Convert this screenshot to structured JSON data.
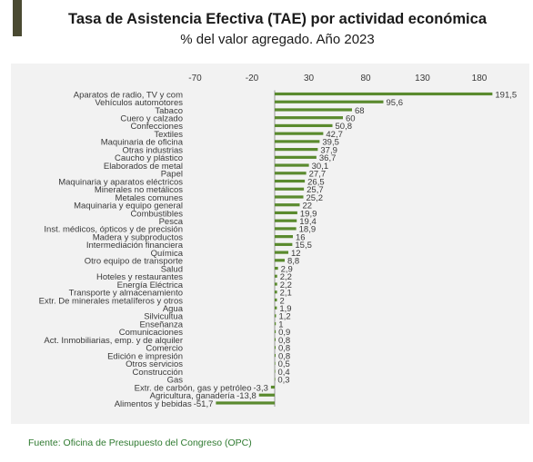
{
  "header": {
    "title": "Tasa de Asistencia Efectiva (TAE) por actividad económica",
    "subtitle": "% del valor agregado. Año 2023"
  },
  "footer": {
    "source": "Fuente: Oficina de Presupuesto del Congreso (OPC)"
  },
  "colors": {
    "bar": "#5a8a2e",
    "axis": "#9a9a9a",
    "text": "#3a3a3a",
    "panel": "#f2f2f2",
    "source": "#2f7a30",
    "accent": "#4a4a32"
  },
  "chart_data": {
    "type": "bar",
    "orientation": "horizontal",
    "title": "Tasa de Asistencia Efectiva (TAE) por actividad económica",
    "subtitle": "% del valor agregado. Año 2023",
    "xlim": [
      -70,
      200
    ],
    "xticks": [
      -70,
      -20,
      30,
      80,
      130,
      180
    ],
    "grid": false,
    "categories": [
      "Aparatos de radio, TV y com",
      "Vehículos automotores",
      "Tabaco",
      "Cuero y calzado",
      "Confecciones",
      "Textiles",
      "Maquinaria de oficina",
      "Otras industrias",
      "Caucho y plástico",
      "Elaborados de metal",
      "Papel",
      "Maquinaria y aparatos eléctricos",
      "Minerales no metálicos",
      "Metales comunes",
      "Maquinaria y equipo general",
      "Combustibles",
      "Pesca",
      "Inst. médicos, ópticos y de precisión",
      "Madera y subproductos",
      "Intermediación financiera",
      "Química",
      "Otro equipo de transporte",
      "Salud",
      "Hoteles y restaurantes",
      "Energía Eléctrica",
      "Transporte y almacenamiento",
      "Extr. De minerales metalíferos y otros",
      "Agua",
      "Silvicultua",
      "Enseñanza",
      "Comunicaciones",
      "Act. Inmobiliarias, emp. y de alquiler",
      "Comercio",
      "Edición e impresión",
      "Otros servicios",
      "Construcción",
      "Gas",
      "Extr. de carbón, gas y petróleo",
      "Agricultura, ganadería",
      "Alimentos y bebidas"
    ],
    "values": [
      191.5,
      95.6,
      68,
      60,
      50.8,
      42.7,
      39.5,
      37.9,
      36.7,
      30.1,
      27.7,
      26.5,
      25.7,
      25.2,
      22,
      19.9,
      19.4,
      18.9,
      16,
      15.5,
      12,
      8.8,
      2.9,
      2.2,
      2.2,
      2.1,
      2,
      1.9,
      1.2,
      1,
      0.9,
      0.8,
      0.8,
      0.8,
      0.5,
      0.4,
      0.3,
      -3.3,
      -13.8,
      -51.7
    ],
    "value_labels": [
      "191,5",
      "95,6",
      "68",
      "60",
      "50,8",
      "42,7",
      "39,5",
      "37,9",
      "36,7",
      "30,1",
      "27,7",
      "26,5",
      "25,7",
      "25,2",
      "22",
      "19,9",
      "19,4",
      "18,9",
      "16",
      "15,5",
      "12",
      "8,8",
      "2,9",
      "2,2",
      "2,2",
      "2,1",
      "2",
      "1,9",
      "1,2",
      "1",
      "0,9",
      "0,8",
      "0,8",
      "0,8",
      "0,5",
      "0,4",
      "0,3",
      "-3,3",
      "-13,8",
      "-51,7"
    ]
  }
}
